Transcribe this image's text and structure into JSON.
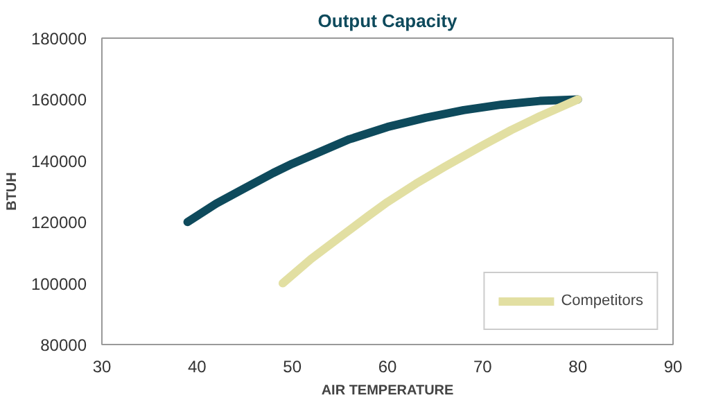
{
  "chart_data": {
    "type": "line",
    "title": "Output Capacity",
    "xlabel": "AIR TEMPERATURE",
    "ylabel": "BTUH",
    "xlim": [
      30,
      90
    ],
    "xticks": [
      30,
      40,
      50,
      60,
      70,
      80,
      90
    ],
    "ylim": [
      80000,
      180000
    ],
    "yticks": [
      80000,
      100000,
      120000,
      140000,
      160000,
      180000
    ],
    "grid": false,
    "legend": "bottom right",
    "line_style": "solid",
    "series": [
      {
        "color": "#0e4a5c",
        "x": [
          39,
          42,
          45,
          48,
          50,
          53,
          56,
          60,
          64,
          68,
          72,
          76,
          80
        ],
        "values": [
          120000,
          126000,
          131000,
          136000,
          139000,
          143000,
          147000,
          151000,
          154000,
          156500,
          158300,
          159500,
          160000
        ]
      },
      {
        "name": "Competitors",
        "color": "#e2dfa2",
        "x": [
          49,
          52,
          55,
          58,
          60,
          63,
          66,
          70,
          73,
          76,
          80
        ],
        "values": [
          100000,
          108000,
          115000,
          122000,
          126500,
          132500,
          138000,
          145000,
          150000,
          154500,
          160000
        ]
      }
    ]
  }
}
